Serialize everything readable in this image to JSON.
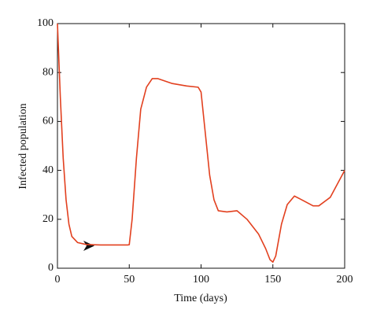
{
  "chart_data": {
    "type": "line",
    "x_label": "Time (days)",
    "y_label": "Infected population",
    "x": [
      0,
      2,
      4,
      6,
      8,
      10,
      14,
      20,
      30,
      49,
      50,
      52,
      55,
      58,
      62,
      66,
      70,
      80,
      90,
      98,
      100,
      103,
      106,
      109,
      112,
      118,
      125,
      132,
      140,
      145,
      148,
      150,
      152,
      156,
      160,
      165,
      170,
      178,
      182,
      190,
      200
    ],
    "series": [
      {
        "color": "#e2401f",
        "values": [
          100,
          70,
          45,
          28,
          18,
          13,
          10.5,
          9.7,
          9.5,
          9.5,
          9.6,
          20,
          45,
          65,
          74,
          77.5,
          77.5,
          75.5,
          74.5,
          74,
          72,
          55,
          38,
          28,
          23.5,
          23,
          23.5,
          20,
          14,
          8,
          3.5,
          2.5,
          5,
          18,
          26,
          29.5,
          28,
          25.5,
          25.5,
          29,
          40
        ]
      }
    ],
    "xlim": [
      0,
      200
    ],
    "ylim": [
      0,
      100
    ],
    "xticks": [
      0,
      50,
      100,
      150,
      200
    ],
    "yticks": [
      0,
      20,
      40,
      60,
      80,
      100
    ]
  }
}
